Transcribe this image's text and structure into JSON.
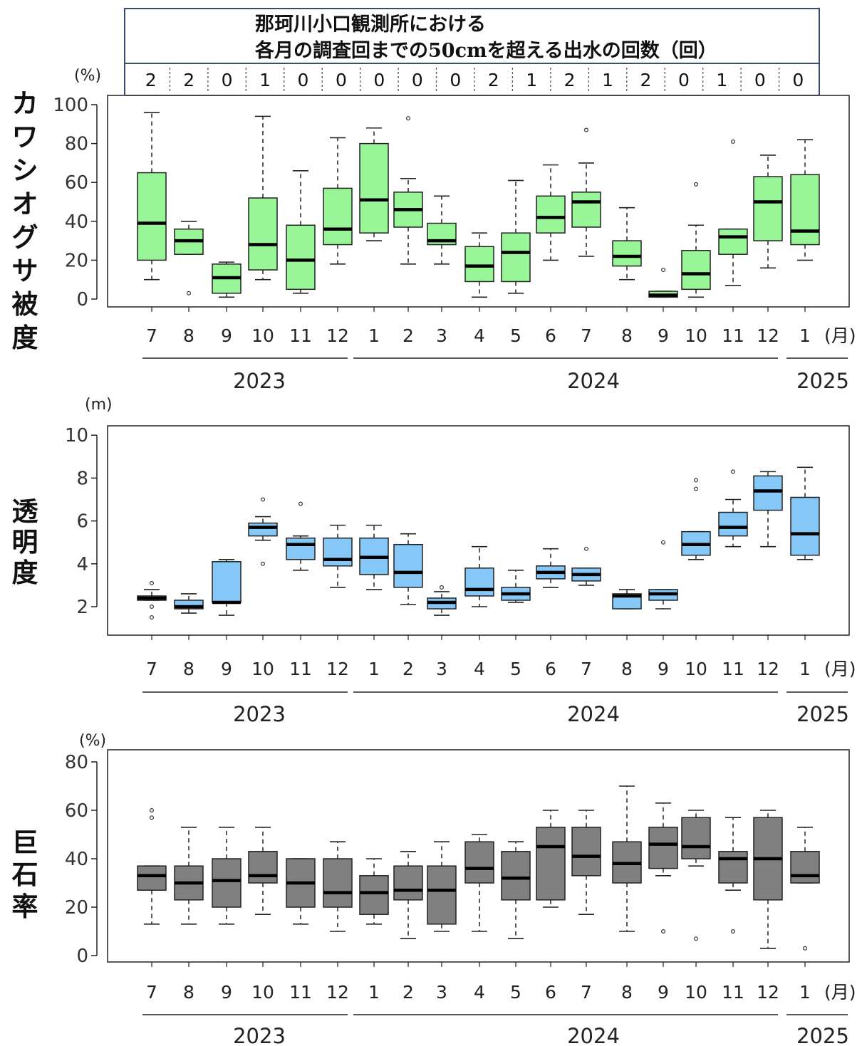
{
  "header": {
    "title_line1": "那珂川小口観測所における",
    "title_line2": "各月の調査回までの50cmを超える出水の回数（回）",
    "counts": [
      "2",
      "2",
      "0",
      "1",
      "0",
      "0",
      "0",
      "0",
      "0",
      "2",
      "1",
      "2",
      "1",
      "2",
      "0",
      "1",
      "0",
      "0"
    ]
  },
  "x_axis": {
    "months": [
      "7",
      "8",
      "9",
      "10",
      "11",
      "12",
      "1",
      "2",
      "3",
      "4",
      "5",
      "6",
      "7",
      "8",
      "9",
      "10",
      "11",
      "12",
      "1"
    ],
    "month_unit": "(月)",
    "years": [
      "2023",
      "2024",
      "2025"
    ]
  },
  "chart_data": [
    {
      "type": "boxplot",
      "ylabel": "カワシオグサ被度",
      "unit": "(%)",
      "ylim": [
        0,
        100
      ],
      "yticks": [
        0,
        20,
        40,
        60,
        80,
        100
      ],
      "color": "#98f598",
      "categories": [
        "2023-7",
        "2023-8",
        "2023-9",
        "2023-10",
        "2023-11",
        "2023-12",
        "2024-1",
        "2024-2",
        "2024-3",
        "2024-4",
        "2024-5",
        "2024-6",
        "2024-7",
        "2024-8",
        "2024-9",
        "2024-10",
        "2024-11",
        "2024-12",
        "2025-1"
      ],
      "boxes": [
        {
          "min": 10,
          "q1": 20,
          "median": 39,
          "q3": 65,
          "max": 96,
          "outliers": []
        },
        {
          "min": 23,
          "q1": 23,
          "median": 30,
          "q3": 36,
          "max": 40,
          "outliers": [
            3
          ]
        },
        {
          "min": 1,
          "q1": 3,
          "median": 11,
          "q3": 18,
          "max": 19,
          "outliers": []
        },
        {
          "min": 10,
          "q1": 15,
          "median": 28,
          "q3": 52,
          "max": 94,
          "outliers": []
        },
        {
          "min": 3,
          "q1": 5,
          "median": 20,
          "q3": 38,
          "max": 66,
          "outliers": []
        },
        {
          "min": 18,
          "q1": 28,
          "median": 36,
          "q3": 57,
          "max": 83,
          "outliers": []
        },
        {
          "min": 30,
          "q1": 34,
          "median": 51,
          "q3": 80,
          "max": 88,
          "outliers": []
        },
        {
          "min": 18,
          "q1": 37,
          "median": 46,
          "q3": 55,
          "max": 62,
          "outliers": [
            93
          ]
        },
        {
          "min": 18,
          "q1": 28,
          "median": 30,
          "q3": 39,
          "max": 53,
          "outliers": []
        },
        {
          "min": 1,
          "q1": 9,
          "median": 17,
          "q3": 27,
          "max": 34,
          "outliers": []
        },
        {
          "min": 3,
          "q1": 9,
          "median": 24,
          "q3": 34,
          "max": 61,
          "outliers": []
        },
        {
          "min": 20,
          "q1": 34,
          "median": 42,
          "q3": 53,
          "max": 69,
          "outliers": []
        },
        {
          "min": 22,
          "q1": 37,
          "median": 50,
          "q3": 55,
          "max": 70,
          "outliers": [
            87
          ]
        },
        {
          "min": 10,
          "q1": 17,
          "median": 22,
          "q3": 30,
          "max": 47,
          "outliers": []
        },
        {
          "min": 1,
          "q1": 1,
          "median": 2,
          "q3": 4,
          "max": 4,
          "outliers": [
            15
          ]
        },
        {
          "min": 1,
          "q1": 5,
          "median": 13,
          "q3": 25,
          "max": 38,
          "outliers": [
            59
          ]
        },
        {
          "min": 7,
          "q1": 23,
          "median": 32,
          "q3": 36,
          "max": 36,
          "outliers": [
            81
          ]
        },
        {
          "min": 16,
          "q1": 30,
          "median": 50,
          "q3": 63,
          "max": 74,
          "outliers": []
        },
        {
          "min": 20,
          "q1": 28,
          "median": 35,
          "q3": 64,
          "max": 82,
          "outliers": []
        }
      ]
    },
    {
      "type": "boxplot",
      "ylabel": "透明度",
      "unit": "(m)",
      "ylim": [
        1.0,
        10.4
      ],
      "yticks": [
        2,
        4,
        6,
        8,
        10
      ],
      "color": "#85c8f8",
      "categories": [
        "2023-7",
        "2023-8",
        "2023-9",
        "2023-10",
        "2023-11",
        "2023-12",
        "2024-1",
        "2024-2",
        "2024-3",
        "2024-4",
        "2024-5",
        "2024-6",
        "2024-7",
        "2024-8",
        "2024-9",
        "2024-10",
        "2024-11",
        "2024-12",
        "2025-1"
      ],
      "boxes": [
        {
          "min": 2.3,
          "q1": 2.3,
          "median": 2.4,
          "q3": 2.5,
          "max": 2.8,
          "outliers": [
            3.1,
            2.0,
            1.5
          ]
        },
        {
          "min": 1.7,
          "q1": 1.9,
          "median": 2.0,
          "q3": 2.3,
          "max": 2.6,
          "outliers": []
        },
        {
          "min": 1.6,
          "q1": 2.2,
          "median": 2.2,
          "q3": 4.1,
          "max": 4.2,
          "outliers": []
        },
        {
          "min": 5.1,
          "q1": 5.3,
          "median": 5.7,
          "q3": 5.9,
          "max": 6.2,
          "outliers": [
            7.0,
            4.0
          ]
        },
        {
          "min": 3.7,
          "q1": 4.2,
          "median": 4.9,
          "q3": 5.2,
          "max": 5.3,
          "outliers": [
            6.8
          ]
        },
        {
          "min": 2.9,
          "q1": 3.9,
          "median": 4.2,
          "q3": 5.2,
          "max": 5.8,
          "outliers": []
        },
        {
          "min": 2.8,
          "q1": 3.5,
          "median": 4.3,
          "q3": 5.2,
          "max": 5.8,
          "outliers": []
        },
        {
          "min": 2.1,
          "q1": 2.9,
          "median": 3.6,
          "q3": 4.9,
          "max": 5.4,
          "outliers": []
        },
        {
          "min": 1.6,
          "q1": 1.9,
          "median": 2.2,
          "q3": 2.4,
          "max": 2.7,
          "outliers": [
            2.9
          ]
        },
        {
          "min": 2.0,
          "q1": 2.5,
          "median": 2.8,
          "q3": 3.8,
          "max": 4.8,
          "outliers": []
        },
        {
          "min": 2.2,
          "q1": 2.3,
          "median": 2.6,
          "q3": 2.9,
          "max": 3.7,
          "outliers": []
        },
        {
          "min": 2.9,
          "q1": 3.3,
          "median": 3.6,
          "q3": 3.9,
          "max": 4.7,
          "outliers": []
        },
        {
          "min": 3.0,
          "q1": 3.2,
          "median": 3.5,
          "q3": 3.8,
          "max": 3.8,
          "outliers": [
            4.7
          ]
        },
        {
          "min": 1.9,
          "q1": 1.9,
          "median": 2.5,
          "q3": 2.6,
          "max": 2.8,
          "outliers": []
        },
        {
          "min": 1.9,
          "q1": 2.3,
          "median": 2.6,
          "q3": 2.8,
          "max": 2.8,
          "outliers": [
            5.0
          ]
        },
        {
          "min": 4.2,
          "q1": 4.4,
          "median": 4.9,
          "q3": 5.5,
          "max": 5.5,
          "outliers": [
            7.9,
            7.5
          ]
        },
        {
          "min": 4.8,
          "q1": 5.3,
          "median": 5.7,
          "q3": 6.4,
          "max": 7.0,
          "outliers": [
            8.3
          ]
        },
        {
          "min": 4.8,
          "q1": 6.5,
          "median": 7.4,
          "q3": 8.1,
          "max": 8.3,
          "outliers": []
        },
        {
          "min": 4.2,
          "q1": 4.4,
          "median": 5.4,
          "q3": 7.1,
          "max": 8.5,
          "outliers": []
        }
      ]
    },
    {
      "type": "boxplot",
      "ylabel": "巨石率",
      "unit": "(%)",
      "ylim": [
        -2,
        80
      ],
      "yticks": [
        0,
        20,
        40,
        60,
        80
      ],
      "color": "#808080",
      "categories": [
        "2023-7",
        "2023-8",
        "2023-9",
        "2023-10",
        "2023-11",
        "2023-12",
        "2024-1",
        "2024-2",
        "2024-3",
        "2024-4",
        "2024-5",
        "2024-6",
        "2024-7",
        "2024-8",
        "2024-9",
        "2024-10",
        "2024-11",
        "2024-12",
        "2025-1"
      ],
      "boxes": [
        {
          "min": 13,
          "q1": 27,
          "median": 33,
          "q3": 37,
          "max": 37,
          "outliers": [
            60,
            57
          ]
        },
        {
          "min": 13,
          "q1": 23,
          "median": 30,
          "q3": 37,
          "max": 53,
          "outliers": []
        },
        {
          "min": 13,
          "q1": 20,
          "median": 31,
          "q3": 40,
          "max": 53,
          "outliers": []
        },
        {
          "min": 17,
          "q1": 30,
          "median": 33,
          "q3": 43,
          "max": 53,
          "outliers": []
        },
        {
          "min": 13,
          "q1": 20,
          "median": 30,
          "q3": 40,
          "max": 40,
          "outliers": []
        },
        {
          "min": 10,
          "q1": 20,
          "median": 26,
          "q3": 40,
          "max": 47,
          "outliers": []
        },
        {
          "min": 13,
          "q1": 17,
          "median": 26,
          "q3": 33,
          "max": 40,
          "outliers": []
        },
        {
          "min": 7,
          "q1": 23,
          "median": 27,
          "q3": 37,
          "max": 43,
          "outliers": []
        },
        {
          "min": 10,
          "q1": 13,
          "median": 27,
          "q3": 37,
          "max": 47,
          "outliers": []
        },
        {
          "min": 10,
          "q1": 30,
          "median": 36,
          "q3": 47,
          "max": 50,
          "outliers": []
        },
        {
          "min": 7,
          "q1": 23,
          "median": 32,
          "q3": 43,
          "max": 47,
          "outliers": []
        },
        {
          "min": 20,
          "q1": 23,
          "median": 45,
          "q3": 53,
          "max": 60,
          "outliers": []
        },
        {
          "min": 17,
          "q1": 33,
          "median": 41,
          "q3": 53,
          "max": 60,
          "outliers": []
        },
        {
          "min": 10,
          "q1": 30,
          "median": 38,
          "q3": 47,
          "max": 70,
          "outliers": []
        },
        {
          "min": 33,
          "q1": 36,
          "median": 46,
          "q3": 53,
          "max": 63,
          "outliers": [
            10
          ]
        },
        {
          "min": 37,
          "q1": 40,
          "median": 45,
          "q3": 57,
          "max": 60,
          "outliers": [
            7
          ]
        },
        {
          "min": 27,
          "q1": 30,
          "median": 40,
          "q3": 43,
          "max": 57,
          "outliers": [
            10
          ]
        },
        {
          "min": 3,
          "q1": 23,
          "median": 40,
          "q3": 57,
          "max": 60,
          "outliers": []
        },
        {
          "min": 30,
          "q1": 30,
          "median": 33,
          "q3": 43,
          "max": 53,
          "outliers": [
            3
          ]
        }
      ]
    }
  ]
}
